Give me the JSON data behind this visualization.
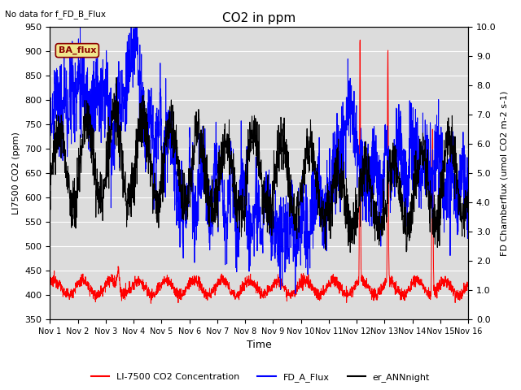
{
  "title": "CO2 in ppm",
  "top_left_text": "No data for f_FD_B_Flux",
  "annotation_text": "BA_flux",
  "xlabel": "Time",
  "ylabel_left": "LI7500 CO2 (ppm)",
  "ylabel_right": "FD Chamberflux (umol CO2 m-2 s-1)",
  "ylim_left": [
    350,
    950
  ],
  "ylim_right": [
    0.0,
    10.0
  ],
  "yticks_left": [
    350,
    400,
    450,
    500,
    550,
    600,
    650,
    700,
    750,
    800,
    850,
    900,
    950
  ],
  "yticks_right": [
    0.0,
    1.0,
    2.0,
    3.0,
    4.0,
    5.0,
    6.0,
    7.0,
    8.0,
    9.0,
    10.0
  ],
  "xtick_labels": [
    "Nov 1",
    "Nov 2",
    "Nov 3",
    "Nov 4",
    "Nov 5",
    "Nov 6",
    "Nov 7",
    "Nov 8",
    "Nov 9",
    "Nov 10",
    "Nov 11",
    "Nov 12",
    "Nov 13",
    "Nov 14",
    "Nov 15",
    "Nov 16"
  ],
  "color_red": "#ff0000",
  "color_blue": "#0000ff",
  "color_black": "#000000",
  "legend_labels": [
    "LI-7500 CO2 Concentration",
    "FD_A_Flux",
    "er_ANNnight"
  ],
  "bg_color": "#dcdcdc",
  "annotation_bg": "#f0e68c",
  "annotation_border": "#8b0000",
  "annotation_text_color": "#8b0000"
}
